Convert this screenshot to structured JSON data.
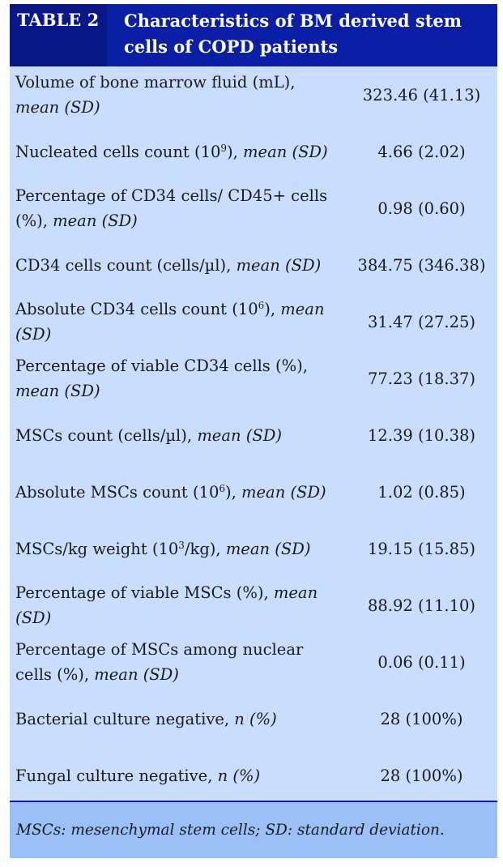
{
  "header": {
    "label": "TABLE 2",
    "title": "Characteristics of BM derived stem cells of COPD patients"
  },
  "rows": [
    {
      "name": "Volume of bone marrow fluid (mL), ",
      "stat": "mean (SD)",
      "value": "323.46 (41.13)"
    },
    {
      "name_pre": "Nucleated cells count (10",
      "sup": "9",
      "name_post": "), ",
      "stat": "mean (SD)",
      "value": "4.66 (2.02)"
    },
    {
      "name": "Percentage of CD34 cells/ CD45+ cells (%), ",
      "stat": "mean (SD)",
      "value": "0.98 (0.60)"
    },
    {
      "name": "CD34 cells count (cells/µl), ",
      "stat": "mean (SD)",
      "value": "384.75 (346.38)"
    },
    {
      "name_pre": "Absolute CD34 cells count (10",
      "sup": "6",
      "name_post": "), ",
      "stat": "mean (SD)",
      "value": "31.47 (27.25)"
    },
    {
      "name": "Percentage of viable CD34 cells (%), ",
      "stat": "mean (SD)",
      "value": "77.23 (18.37)"
    },
    {
      "name": "MSCs count (cells/µl), ",
      "stat": "mean (SD)",
      "value": "12.39 (10.38)"
    },
    {
      "name_pre": "Absolute MSCs count (10",
      "sup": "6",
      "name_post": "), ",
      "stat": "mean (SD)",
      "value": "1.02 (0.85)"
    },
    {
      "name_pre": "MSCs/kg weight (10",
      "sup": "3",
      "name_post": "/kg), ",
      "stat": "mean (SD)",
      "value": "19.15 (15.85)"
    },
    {
      "name": "Percentage of viable MSCs (%), ",
      "stat": "mean (SD)",
      "value": "88.92 (11.10)"
    },
    {
      "name": "Percentage of MSCs among nuclear cells (%), ",
      "stat": "mean (SD)",
      "value": "0.06 (0.11)"
    },
    {
      "name": "Bacterial culture negative, ",
      "stat": "n (%)",
      "value": "28 (100%)"
    },
    {
      "name": "Fungal culture negative, ",
      "stat": "n (%)",
      "value": "28 (100%)"
    }
  ],
  "footer": {
    "note": "MSCs: mesenchymal stem cells; SD: standard deviation."
  }
}
